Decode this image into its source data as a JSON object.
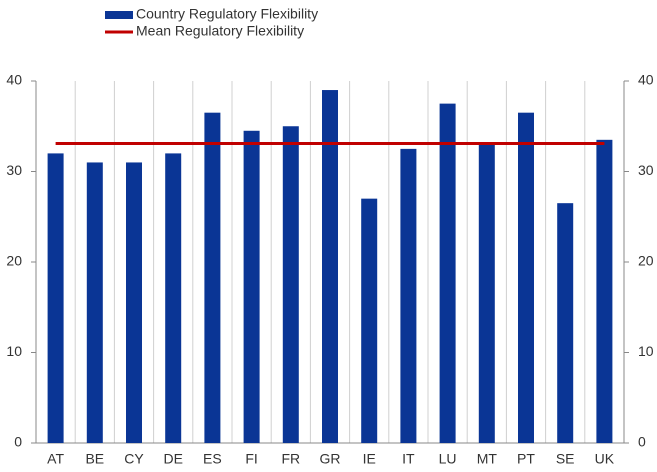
{
  "chart_data": {
    "type": "bar",
    "categories": [
      "AT",
      "BE",
      "CY",
      "DE",
      "ES",
      "FI",
      "FR",
      "GR",
      "IE",
      "IT",
      "LU",
      "MT",
      "PT",
      "SE",
      "UK"
    ],
    "series": [
      {
        "name": "Country Regulatory Flexibility",
        "type": "bar",
        "color": "#0a3595",
        "values": [
          32,
          31,
          31,
          32,
          36.5,
          34.5,
          35,
          39,
          27,
          32.5,
          37.5,
          33,
          36.5,
          26.5,
          33.5
        ]
      },
      {
        "name": "Mean Regulatory Flexibility",
        "type": "line",
        "color": "#c00000",
        "values": [
          33.1,
          33.1,
          33.1,
          33.1,
          33.1,
          33.1,
          33.1,
          33.1,
          33.1,
          33.1,
          33.1,
          33.1,
          33.1,
          33.1,
          33.1
        ]
      }
    ],
    "ylim": [
      0,
      40
    ],
    "yticks": [
      0,
      10,
      20,
      30,
      40
    ],
    "y2lim": [
      0,
      40
    ],
    "y2ticks": [
      0,
      10,
      20,
      30,
      40
    ],
    "grid": true
  }
}
